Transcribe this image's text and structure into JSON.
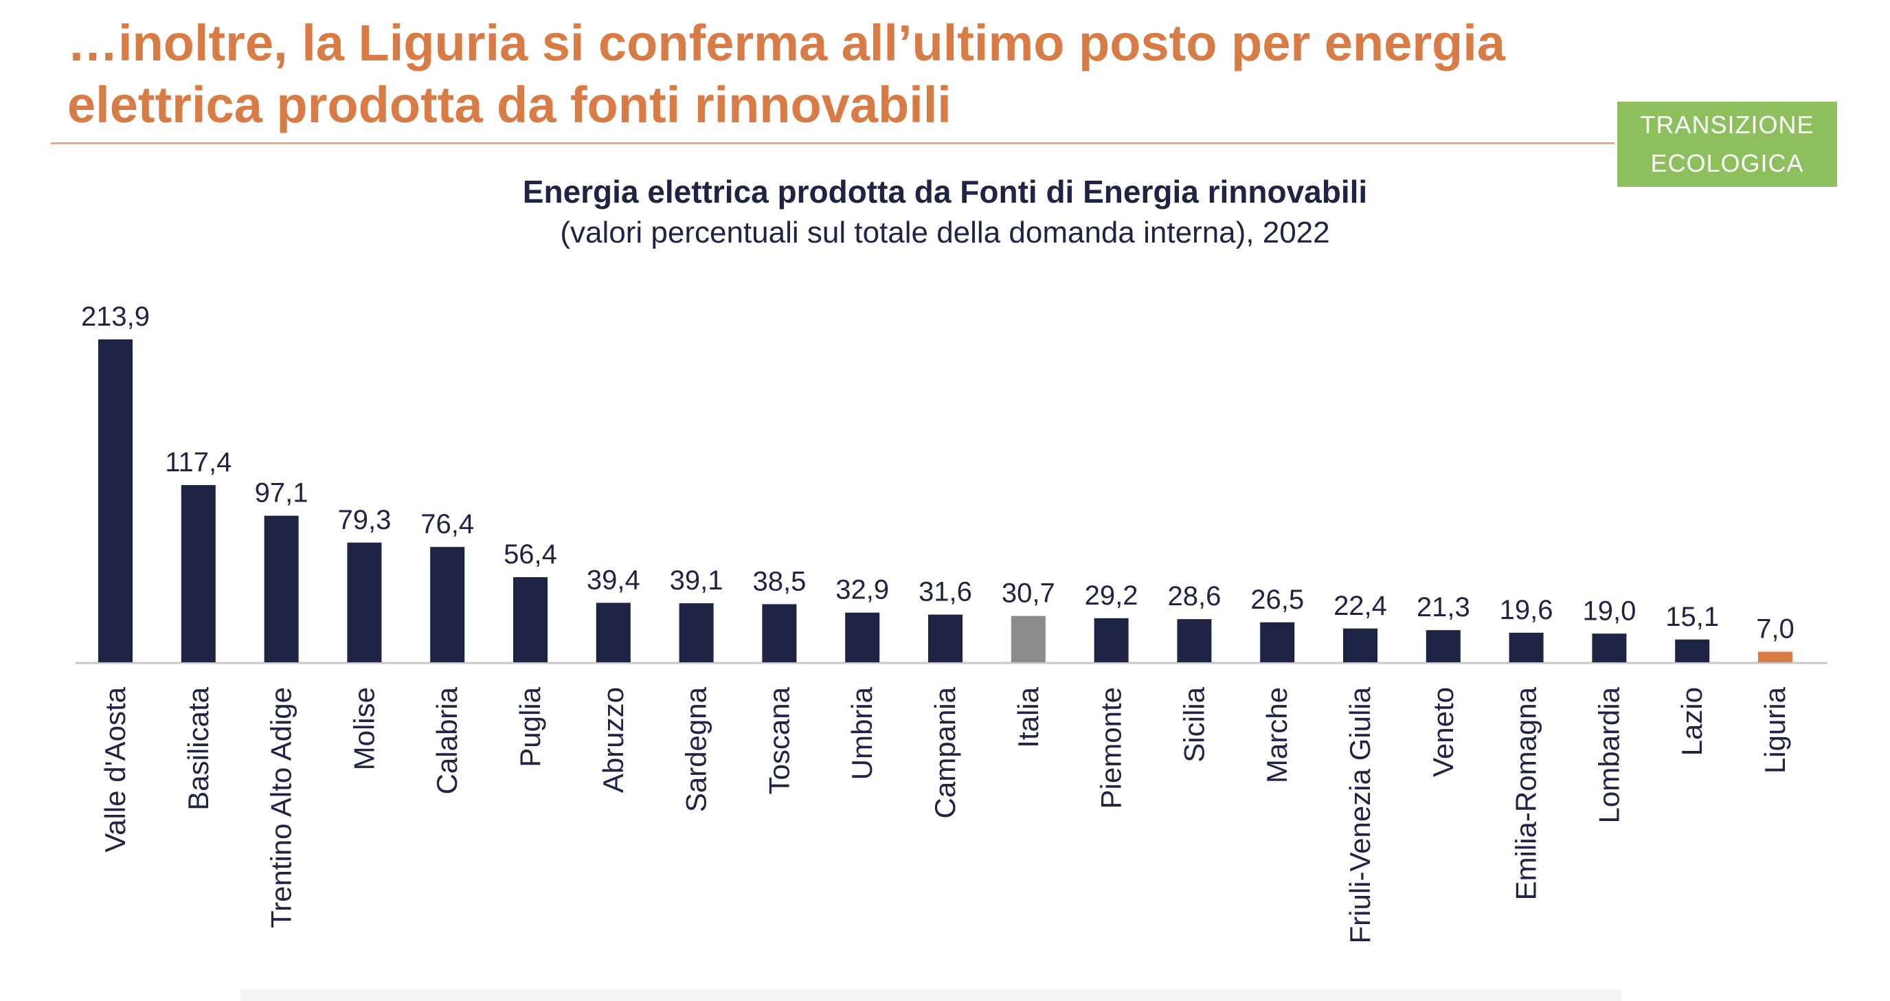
{
  "header": {
    "title": "…inoltre, la Liguria si conferma all’ultimo posto per energia elettrica prodotta da fonti rinnovabili",
    "badge_line1": "TRANSIZIONE",
    "badge_line2": "ECOLOGICA"
  },
  "colors": {
    "title": "#D97B45",
    "bar": "#1F2344",
    "italia": "#8C8C8C",
    "liguria": "#D97B45",
    "badge": "#8DBF5E",
    "axis": "#C8C8C8",
    "text": "#1F2344"
  },
  "chart_data": {
    "type": "bar",
    "title": "Energia elettrica prodotta da Fonti di Energia rinnovabili",
    "subtitle": "(valori percentuali sul totale della domanda interna), 2022",
    "xlabel": "",
    "ylabel": "",
    "ylim": [
      0,
      213.9
    ],
    "grid": false,
    "categories": [
      "Valle d'Aosta",
      "Basilicata",
      "Trentino Alto Adige",
      "Molise",
      "Calabria",
      "Puglia",
      "Abruzzo",
      "Sardegna",
      "Toscana",
      "Umbria",
      "Campania",
      "Italia",
      "Piemonte",
      "Sicilia",
      "Marche",
      "Friuli-Venezia Giulia",
      "Veneto",
      "Emilia-Romagna",
      "Lombardia",
      "Lazio",
      "Liguria"
    ],
    "values": [
      213.9,
      117.4,
      97.1,
      79.3,
      76.4,
      56.4,
      39.4,
      39.1,
      38.5,
      32.9,
      31.6,
      30.7,
      29.2,
      28.6,
      26.5,
      22.4,
      21.3,
      19.6,
      19.0,
      15.1,
      7.0
    ],
    "labels": [
      "213,9",
      "117,4",
      "97,1",
      "79,3",
      "76,4",
      "56,4",
      "39,4",
      "39,1",
      "38,5",
      "32,9",
      "31,6",
      "30,7",
      "29,2",
      "28,6",
      "26,5",
      "22,4",
      "21,3",
      "19,6",
      "19,0",
      "15,1",
      "7,0"
    ],
    "highlight": {
      "Italia": "italia",
      "Liguria": "liguria"
    }
  }
}
